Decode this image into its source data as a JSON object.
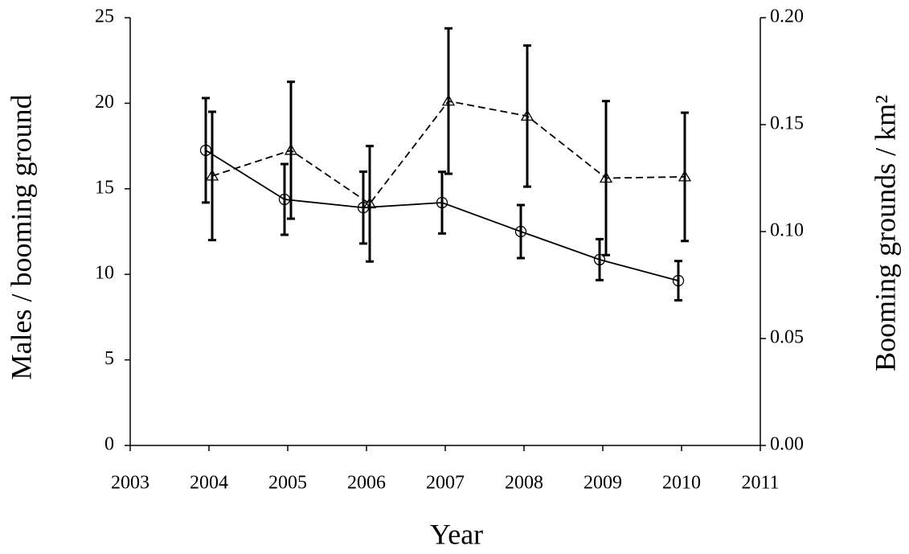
{
  "chart_data": {
    "type": "line",
    "x_label": "Year",
    "y_label": "Males / booming ground",
    "y2_label": "Booming grounds / km²",
    "x": [
      2004,
      2005,
      2006,
      2007,
      2008,
      2009,
      2010
    ],
    "xlim": [
      2003,
      2011
    ],
    "xticks": [
      2003,
      2004,
      2005,
      2006,
      2007,
      2008,
      2009,
      2010,
      2011
    ],
    "ylim": [
      0,
      25
    ],
    "yticks": [
      0,
      5,
      10,
      15,
      20,
      25
    ],
    "y2lim": [
      0,
      0.2
    ],
    "y2ticks": [
      {
        "value": 0,
        "label": "0.00"
      },
      0.05,
      {
        "value": 0.1,
        "label": "0.10"
      },
      0.15,
      {
        "value": 0.2,
        "label": "0.20"
      }
    ],
    "grid": false,
    "series": [
      {
        "color": "#000000",
        "marker": "circle",
        "dash": "solid",
        "values": [
          17.25,
          14.38,
          13.9,
          14.19,
          12.5,
          10.86,
          9.63
        ],
        "errors": [
          3.05,
          2.07,
          2.1,
          1.8,
          1.55,
          1.2,
          1.15
        ]
      },
      {
        "color": "#000000",
        "marker": "triangle",
        "dash": "dashed",
        "axis": "y2",
        "values": [
          0.126,
          0.138,
          0.113,
          0.161,
          0.154,
          0.125,
          0.1256
        ],
        "errors": [
          0.03,
          0.032,
          0.027,
          0.034,
          0.033,
          0.036,
          0.03
        ]
      }
    ]
  }
}
